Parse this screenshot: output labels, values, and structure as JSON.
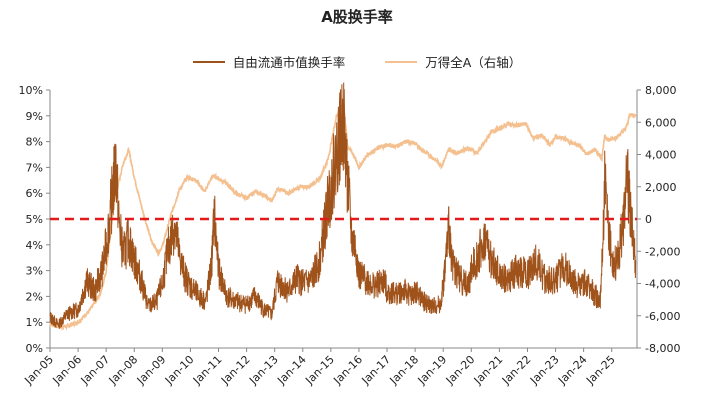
{
  "chart_data": {
    "type": "line",
    "title": "A股换手率",
    "legend_position": "top",
    "grid": false,
    "colors": {
      "turnover": "#a0521b",
      "index": "#f4c090",
      "reference_line": "#e31a1c"
    },
    "x_tick_labels": [
      "Jan-05",
      "Jan-06",
      "Jan-07",
      "Jan-08",
      "Jan-09",
      "Jan-10",
      "Jan-11",
      "Jan-12",
      "Jan-13",
      "Jan-14",
      "Jan-15",
      "Jan-16",
      "Jan-17",
      "Jan-18",
      "Jan-19",
      "Jan-20",
      "Jan-21",
      "Jan-22",
      "Jan-23",
      "Jan-24",
      "Jan-25"
    ],
    "x_range": [
      2005.0,
      2025.9
    ],
    "y_left": {
      "ticks": [
        "0%",
        "1%",
        "2%",
        "3%",
        "4%",
        "5%",
        "6%",
        "7%",
        "8%",
        "9%",
        "10%"
      ],
      "range": [
        0,
        10
      ]
    },
    "y_right": {
      "ticks": [
        "-8,000",
        "-6,000",
        "-4,000",
        "-2,000",
        "0",
        "2,000",
        "4,000",
        "6,000",
        "8,000"
      ],
      "range": [
        -8000,
        8000
      ]
    },
    "reference_line": {
      "axis": "left",
      "value": 5,
      "style": "dashed"
    },
    "series": [
      {
        "name": "自由流通市值换手率",
        "axis": "left",
        "approximate_points": [
          [
            2005.0,
            1.2
          ],
          [
            2005.3,
            0.9
          ],
          [
            2005.6,
            1.3
          ],
          [
            2006.0,
            1.5
          ],
          [
            2006.3,
            2.6
          ],
          [
            2006.6,
            2.2
          ],
          [
            2006.9,
            3.2
          ],
          [
            2007.1,
            4.8
          ],
          [
            2007.35,
            7.2
          ],
          [
            2007.45,
            5.0
          ],
          [
            2007.6,
            3.6
          ],
          [
            2007.8,
            4.2
          ],
          [
            2008.0,
            3.4
          ],
          [
            2008.2,
            2.8
          ],
          [
            2008.5,
            1.6
          ],
          [
            2008.8,
            1.8
          ],
          [
            2009.0,
            2.5
          ],
          [
            2009.2,
            3.8
          ],
          [
            2009.45,
            4.8
          ],
          [
            2009.6,
            3.6
          ],
          [
            2009.8,
            2.8
          ],
          [
            2010.0,
            2.4
          ],
          [
            2010.3,
            2.0
          ],
          [
            2010.55,
            1.8
          ],
          [
            2010.75,
            3.2
          ],
          [
            2010.85,
            5.2
          ],
          [
            2011.0,
            3.0
          ],
          [
            2011.3,
            2.0
          ],
          [
            2011.6,
            1.8
          ],
          [
            2012.0,
            1.7
          ],
          [
            2012.3,
            2.0
          ],
          [
            2012.6,
            1.5
          ],
          [
            2012.9,
            1.3
          ],
          [
            2013.1,
            2.6
          ],
          [
            2013.5,
            2.2
          ],
          [
            2013.8,
            2.7
          ],
          [
            2014.0,
            2.5
          ],
          [
            2014.3,
            2.6
          ],
          [
            2014.6,
            3.4
          ],
          [
            2014.9,
            5.6
          ],
          [
            2015.0,
            6.2
          ],
          [
            2015.2,
            7.5
          ],
          [
            2015.45,
            8.8
          ],
          [
            2015.6,
            6.4
          ],
          [
            2015.75,
            4.2
          ],
          [
            2015.9,
            3.8
          ],
          [
            2016.0,
            2.8
          ],
          [
            2016.3,
            2.6
          ],
          [
            2016.6,
            2.4
          ],
          [
            2016.9,
            2.6
          ],
          [
            2017.0,
            2.2
          ],
          [
            2017.3,
            2.1
          ],
          [
            2017.6,
            2.2
          ],
          [
            2017.9,
            2.0
          ],
          [
            2018.0,
            2.2
          ],
          [
            2018.3,
            1.8
          ],
          [
            2018.6,
            1.6
          ],
          [
            2018.9,
            1.7
          ],
          [
            2019.0,
            2.4
          ],
          [
            2019.2,
            4.6
          ],
          [
            2019.35,
            3.2
          ],
          [
            2019.6,
            2.7
          ],
          [
            2019.9,
            2.4
          ],
          [
            2020.0,
            3.0
          ],
          [
            2020.2,
            3.5
          ],
          [
            2020.5,
            4.2
          ],
          [
            2020.7,
            3.4
          ],
          [
            2020.9,
            3.0
          ],
          [
            2021.0,
            2.8
          ],
          [
            2021.3,
            2.6
          ],
          [
            2021.6,
            3.0
          ],
          [
            2021.9,
            2.9
          ],
          [
            2022.0,
            2.8
          ],
          [
            2022.3,
            3.4
          ],
          [
            2022.6,
            2.7
          ],
          [
            2022.9,
            2.6
          ],
          [
            2023.0,
            2.6
          ],
          [
            2023.3,
            3.2
          ],
          [
            2023.6,
            2.6
          ],
          [
            2023.9,
            2.4
          ],
          [
            2024.0,
            2.6
          ],
          [
            2024.3,
            2.2
          ],
          [
            2024.6,
            1.8
          ],
          [
            2024.75,
            6.4
          ],
          [
            2024.9,
            4.2
          ],
          [
            2025.0,
            3.6
          ],
          [
            2025.2,
            3.2
          ],
          [
            2025.4,
            4.8
          ],
          [
            2025.55,
            6.6
          ],
          [
            2025.7,
            4.8
          ],
          [
            2025.85,
            3.4
          ]
        ]
      },
      {
        "name": "万得全A（右轴）",
        "axis": "right",
        "approximate_points": [
          [
            2005.0,
            -6500
          ],
          [
            2005.3,
            -6700
          ],
          [
            2005.6,
            -6650
          ],
          [
            2006.0,
            -6400
          ],
          [
            2006.4,
            -5700
          ],
          [
            2006.8,
            -4600
          ],
          [
            2007.0,
            -3200
          ],
          [
            2007.3,
            1200
          ],
          [
            2007.6,
            3400
          ],
          [
            2007.8,
            4300
          ],
          [
            2008.0,
            2600
          ],
          [
            2008.3,
            500
          ],
          [
            2008.6,
            -1300
          ],
          [
            2008.85,
            -2100
          ],
          [
            2009.0,
            -1700
          ],
          [
            2009.3,
            200
          ],
          [
            2009.6,
            1800
          ],
          [
            2009.9,
            2600
          ],
          [
            2010.2,
            2400
          ],
          [
            2010.5,
            1700
          ],
          [
            2010.8,
            2700
          ],
          [
            2011.0,
            2500
          ],
          [
            2011.3,
            2200
          ],
          [
            2011.6,
            1600
          ],
          [
            2012.0,
            1300
          ],
          [
            2012.3,
            1700
          ],
          [
            2012.6,
            1500
          ],
          [
            2012.9,
            1100
          ],
          [
            2013.1,
            1900
          ],
          [
            2013.5,
            1600
          ],
          [
            2013.9,
            2000
          ],
          [
            2014.2,
            2000
          ],
          [
            2014.6,
            2500
          ],
          [
            2014.9,
            3700
          ],
          [
            2015.2,
            6400
          ],
          [
            2015.45,
            7200
          ],
          [
            2015.6,
            4500
          ],
          [
            2015.8,
            4000
          ],
          [
            2016.0,
            3200
          ],
          [
            2016.3,
            4000
          ],
          [
            2016.7,
            4400
          ],
          [
            2017.0,
            4600
          ],
          [
            2017.3,
            4500
          ],
          [
            2017.7,
            4800
          ],
          [
            2018.0,
            4700
          ],
          [
            2018.3,
            4200
          ],
          [
            2018.7,
            3700
          ],
          [
            2018.95,
            3300
          ],
          [
            2019.2,
            4300
          ],
          [
            2019.5,
            4100
          ],
          [
            2019.9,
            4400
          ],
          [
            2020.2,
            4100
          ],
          [
            2020.5,
            4800
          ],
          [
            2020.7,
            5400
          ],
          [
            2021.0,
            5600
          ],
          [
            2021.3,
            5900
          ],
          [
            2021.6,
            5800
          ],
          [
            2021.95,
            5900
          ],
          [
            2022.2,
            5000
          ],
          [
            2022.5,
            5200
          ],
          [
            2022.8,
            4600
          ],
          [
            2023.0,
            5100
          ],
          [
            2023.3,
            5000
          ],
          [
            2023.6,
            4700
          ],
          [
            2023.9,
            4500
          ],
          [
            2024.1,
            4000
          ],
          [
            2024.4,
            4300
          ],
          [
            2024.65,
            3800
          ],
          [
            2024.75,
            5100
          ],
          [
            2024.9,
            4900
          ],
          [
            2025.2,
            5100
          ],
          [
            2025.5,
            5600
          ],
          [
            2025.65,
            6500
          ],
          [
            2025.85,
            6400
          ]
        ]
      }
    ]
  }
}
